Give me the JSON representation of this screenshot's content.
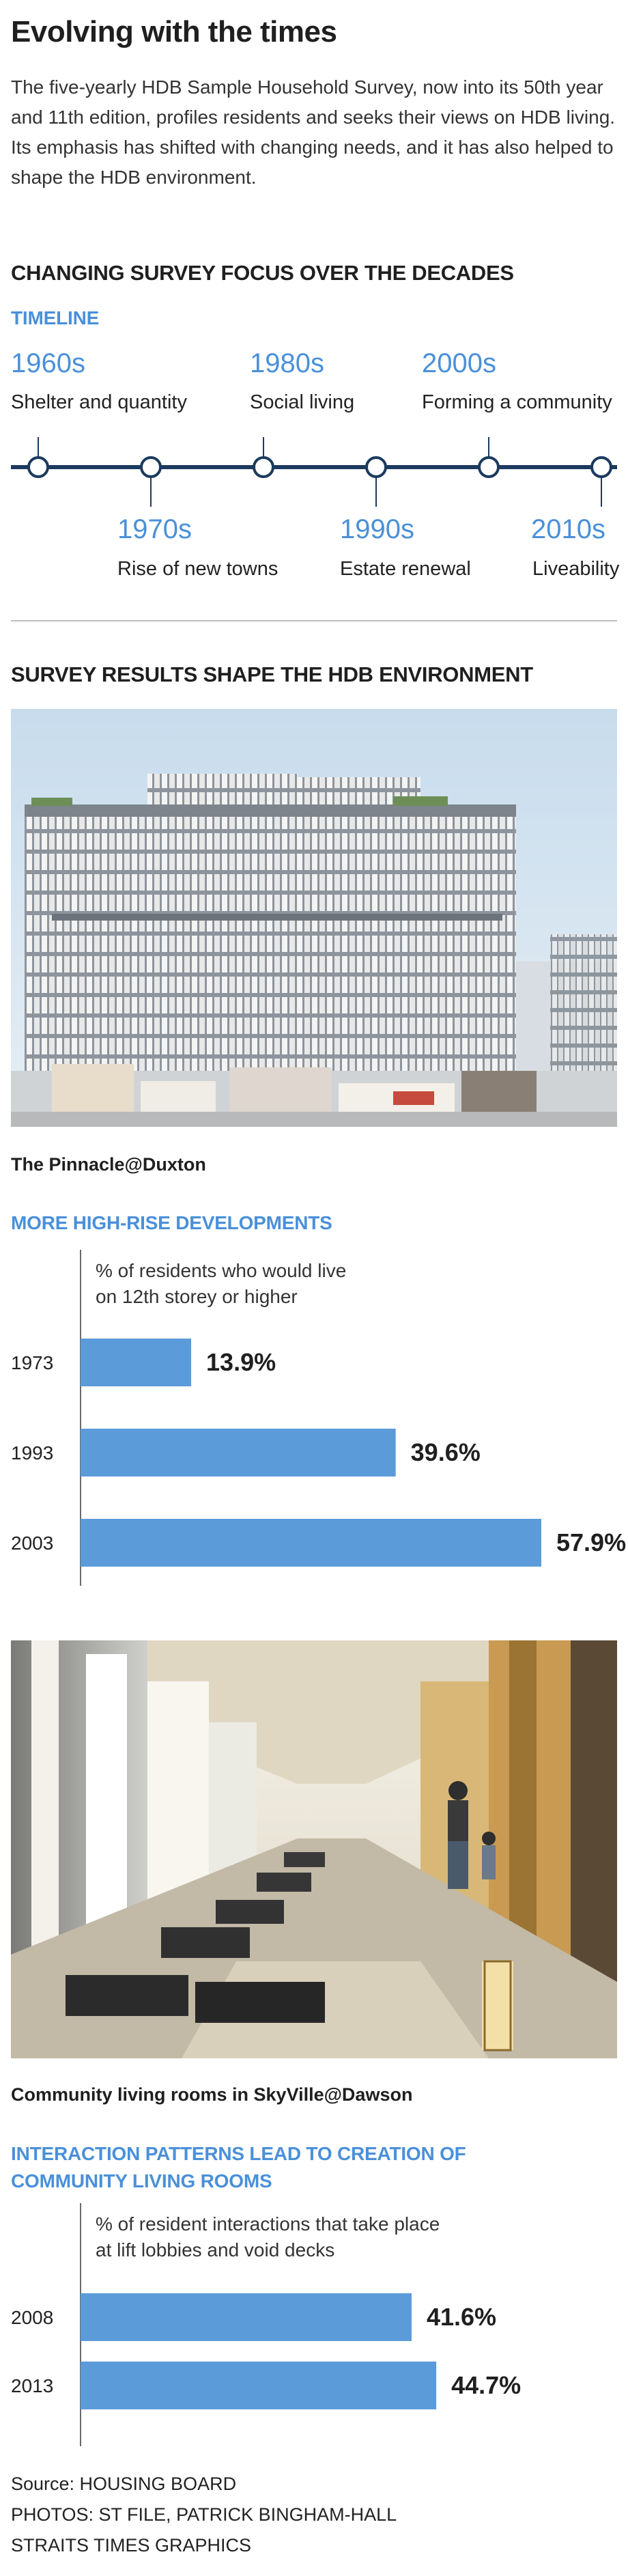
{
  "title": "Evolving with the times",
  "intro": "The five-yearly HDB Sample Household Survey, now into its 50th year and 11th edition, profiles residents and seeks their views on HDB living. Its emphasis has shifted with changing needs, and it has also helped to shape the HDB environment.",
  "section1": {
    "heading": "CHANGING SURVEY FOCUS OVER THE DECADES",
    "subheading": "TIMELINE",
    "items": [
      {
        "year": "1960s",
        "label": "Shelter and quantity"
      },
      {
        "year": "1970s",
        "label": "Rise of new towns"
      },
      {
        "year": "1980s",
        "label": "Social living"
      },
      {
        "year": "1990s",
        "label": "Estate renewal"
      },
      {
        "year": "2000s",
        "label": "Forming a community"
      },
      {
        "year": "2010s",
        "label": "Liveability"
      }
    ]
  },
  "section2": {
    "heading": "SURVEY RESULTS SHAPE THE HDB ENVIRONMENT",
    "photo1_caption": "The Pinnacle@Duxton",
    "photo2_caption": "Community living rooms in SkyVille@Dawson"
  },
  "chart_data": [
    {
      "type": "bar",
      "title": "MORE HIGH-RISE DEVELOPMENTS",
      "subtitle_lines": [
        "% of residents who would live",
        "on 12th storey or higher"
      ],
      "categories": [
        "1973",
        "1993",
        "2003"
      ],
      "values": [
        13.9,
        39.6,
        57.9
      ],
      "value_labels": [
        "13.9%",
        "39.6%",
        "57.9%"
      ],
      "xlim": [
        0,
        57.9
      ],
      "orientation": "horizontal",
      "color": "#5b9bd9"
    },
    {
      "type": "bar",
      "title_lines": [
        "INTERACTION PATTERNS LEAD TO CREATION OF",
        "COMMUNITY LIVING ROOMS"
      ],
      "subtitle_lines": [
        "% of resident interactions that take place",
        "at lift lobbies and void decks"
      ],
      "categories": [
        "2008",
        "2013"
      ],
      "values": [
        41.6,
        44.7
      ],
      "value_labels": [
        "41.6%",
        "44.7%"
      ],
      "xlim": [
        0,
        57.9
      ],
      "orientation": "horizontal",
      "color": "#5b9bd9"
    }
  ],
  "footer": {
    "source": "Source: HOUSING BOARD",
    "photos": "PHOTOS: ST FILE, PATRICK BINGHAM-HALL",
    "credit": "STRAITS TIMES GRAPHICS"
  },
  "colors": {
    "accent": "#4a90d9",
    "bar": "#5b9bd9",
    "timeline": "#1c3a5e"
  }
}
